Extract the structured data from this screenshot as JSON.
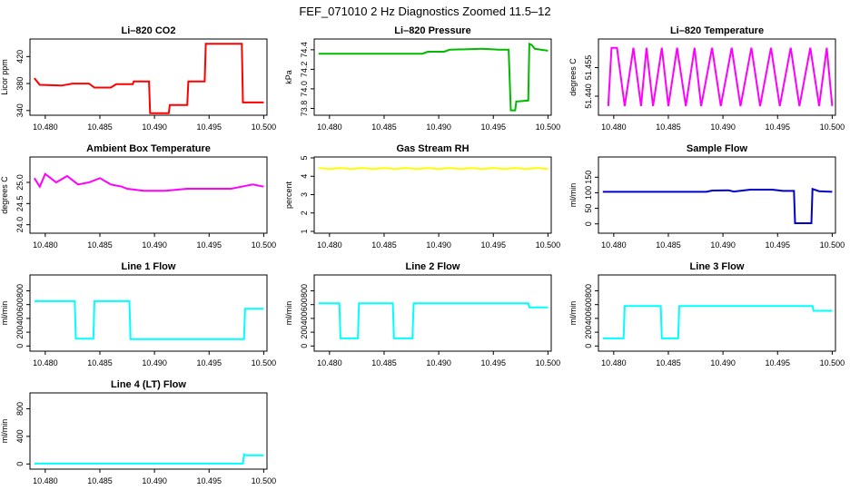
{
  "figure_title": "FEF_071010  2 Hz Diagnostics Zoomed 11.5–12",
  "chart_data": [
    {
      "type": "line",
      "title": "Li–820 CO2",
      "xlabel": "",
      "ylabel": "Licor ppm",
      "color": "#ff0000",
      "xlim": [
        10.4786,
        10.5003
      ],
      "ylim": [
        333,
        446
      ],
      "xticks": [
        "10.480",
        "10.485",
        "10.490",
        "10.495",
        "10.500"
      ],
      "yticks": [
        "340",
        "380",
        "420"
      ],
      "series": [
        {
          "points": [
            [
              10.479,
              388
            ],
            [
              10.4795,
              378
            ],
            [
              10.4815,
              377
            ],
            [
              10.4825,
              380
            ],
            [
              10.484,
              380
            ],
            [
              10.4845,
              374
            ],
            [
              10.486,
              374
            ],
            [
              10.4865,
              379
            ],
            [
              10.488,
              379
            ],
            [
              10.4881,
              383
            ],
            [
              10.4895,
              383
            ],
            [
              10.4896,
              336
            ],
            [
              10.4913,
              336
            ],
            [
              10.4914,
              348
            ],
            [
              10.493,
              348
            ],
            [
              10.4931,
              383
            ],
            [
              10.4946,
              383
            ],
            [
              10.4947,
              439
            ],
            [
              10.498,
              439
            ],
            [
              10.4981,
              352
            ],
            [
              10.5,
              352
            ]
          ]
        }
      ]
    },
    {
      "type": "line",
      "title": "Li–820 Pressure",
      "xlabel": "",
      "ylabel": "kPa",
      "color": "#00bb00",
      "xlim": [
        10.4786,
        10.5003
      ],
      "ylim": [
        73.73,
        74.51
      ],
      "xticks": [
        "10.480",
        "10.485",
        "10.490",
        "10.495",
        "10.500"
      ],
      "yticks": [
        "73.8",
        "74.0",
        "74.2",
        "74.4"
      ],
      "series": [
        {
          "points": [
            [
              10.479,
              74.36
            ],
            [
              10.4885,
              74.36
            ],
            [
              10.489,
              74.38
            ],
            [
              10.4905,
              74.38
            ],
            [
              10.491,
              74.4
            ],
            [
              10.494,
              74.41
            ],
            [
              10.4955,
              74.4
            ],
            [
              10.4964,
              74.4
            ],
            [
              10.4966,
              73.78
            ],
            [
              10.497,
              73.78
            ],
            [
              10.4971,
              73.87
            ],
            [
              10.4982,
              73.88
            ],
            [
              10.4983,
              74.46
            ],
            [
              10.4985,
              74.45
            ],
            [
              10.4988,
              74.41
            ],
            [
              10.5,
              74.39
            ]
          ]
        }
      ]
    },
    {
      "type": "line",
      "title": "Li–820 Temperature",
      "xlabel": "",
      "ylabel": "degrees C",
      "color": "#ff00ff",
      "xlim": [
        10.4786,
        10.5003
      ],
      "ylim": [
        51.43,
        51.47
      ],
      "xticks": [
        "10.480",
        "10.485",
        "10.490",
        "10.495",
        "10.500"
      ],
      "yticks": [
        "51.440",
        "51.455"
      ],
      "series": [
        {
          "points": [
            [
              10.4795,
              51.4348
            ],
            [
              10.4798,
              51.4654
            ],
            [
              10.4803,
              51.4654
            ],
            [
              10.481,
              51.4348
            ],
            [
              10.4818,
              51.4654
            ],
            [
              10.4825,
              51.4348
            ],
            [
              10.483,
              51.4654
            ],
            [
              10.4836,
              51.4348
            ],
            [
              10.4844,
              51.4654
            ],
            [
              10.485,
              51.4348
            ],
            [
              10.4858,
              51.4654
            ],
            [
              10.4866,
              51.4348
            ],
            [
              10.4874,
              51.4654
            ],
            [
              10.488,
              51.4348
            ],
            [
              10.489,
              51.4654
            ],
            [
              10.4898,
              51.4348
            ],
            [
              10.4908,
              51.4654
            ],
            [
              10.4916,
              51.4348
            ],
            [
              10.4926,
              51.4654
            ],
            [
              10.4934,
              51.4348
            ],
            [
              10.4944,
              51.4654
            ],
            [
              10.4952,
              51.4348
            ],
            [
              10.4962,
              51.4654
            ],
            [
              10.497,
              51.4348
            ],
            [
              10.498,
              51.4654
            ],
            [
              10.4988,
              51.4348
            ],
            [
              10.4995,
              51.4654
            ],
            [
              10.5,
              51.4348
            ]
          ]
        }
      ]
    },
    {
      "type": "line",
      "title": "Ambient Box Temperature",
      "xlabel": "",
      "ylabel": "degrees C",
      "color": "#ff00ff",
      "xlim": [
        10.4786,
        10.5003
      ],
      "ylim": [
        23.8,
        25.6
      ],
      "xticks": [
        "10.480",
        "10.485",
        "10.490",
        "10.495",
        "10.500"
      ],
      "yticks": [
        "24.0",
        "24.5",
        "25.0"
      ],
      "series": [
        {
          "points": [
            [
              10.479,
              25.1
            ],
            [
              10.4795,
              24.9
            ],
            [
              10.48,
              25.2
            ],
            [
              10.481,
              25.0
            ],
            [
              10.482,
              25.15
            ],
            [
              10.483,
              24.95
            ],
            [
              10.484,
              25.0
            ],
            [
              10.485,
              25.1
            ],
            [
              10.486,
              24.95
            ],
            [
              10.487,
              24.9
            ],
            [
              10.4875,
              24.85
            ],
            [
              10.489,
              24.8
            ],
            [
              10.491,
              24.8
            ],
            [
              10.493,
              24.85
            ],
            [
              10.495,
              24.85
            ],
            [
              10.497,
              24.85
            ],
            [
              10.498,
              24.9
            ],
            [
              10.499,
              24.95
            ],
            [
              10.5,
              24.9
            ]
          ]
        }
      ]
    },
    {
      "type": "line",
      "title": "Gas Stream RH",
      "xlabel": "",
      "ylabel": "percent",
      "color": "#ffff00",
      "xlim": [
        10.4786,
        10.5003
      ],
      "ylim": [
        0.9,
        5.05
      ],
      "xticks": [
        "10.480",
        "10.485",
        "10.490",
        "10.495",
        "10.500"
      ],
      "yticks": [
        "1",
        "2",
        "3",
        "4",
        "5"
      ],
      "series": [
        {
          "points": [
            [
              10.479,
              4.45
            ],
            [
              10.48,
              4.4
            ],
            [
              10.481,
              4.45
            ],
            [
              10.482,
              4.4
            ],
            [
              10.483,
              4.45
            ],
            [
              10.484,
              4.4
            ],
            [
              10.485,
              4.45
            ],
            [
              10.486,
              4.4
            ],
            [
              10.487,
              4.45
            ],
            [
              10.488,
              4.4
            ],
            [
              10.489,
              4.45
            ],
            [
              10.49,
              4.4
            ],
            [
              10.491,
              4.45
            ],
            [
              10.492,
              4.4
            ],
            [
              10.493,
              4.45
            ],
            [
              10.494,
              4.4
            ],
            [
              10.495,
              4.45
            ],
            [
              10.496,
              4.4
            ],
            [
              10.497,
              4.45
            ],
            [
              10.498,
              4.4
            ],
            [
              10.499,
              4.45
            ],
            [
              10.5,
              4.4
            ]
          ]
        }
      ]
    },
    {
      "type": "line",
      "title": "Sample Flow",
      "xlabel": "",
      "ylabel": "ml/min",
      "color": "#0000cc",
      "xlim": [
        10.4786,
        10.5003
      ],
      "ylim": [
        -30,
        215
      ],
      "xticks": [
        "10.480",
        "10.485",
        "10.490",
        "10.495",
        "10.500"
      ],
      "yticks": [
        "0",
        "50",
        "100",
        "150"
      ],
      "series": [
        {
          "points": [
            [
              10.479,
              103
            ],
            [
              10.4885,
              103
            ],
            [
              10.489,
              107
            ],
            [
              10.4905,
              108
            ],
            [
              10.491,
              104
            ],
            [
              10.4925,
              110
            ],
            [
              10.4945,
              110
            ],
            [
              10.4955,
              106
            ],
            [
              10.4965,
              106
            ],
            [
              10.4966,
              2
            ],
            [
              10.4981,
              2
            ],
            [
              10.4982,
              112
            ],
            [
              10.4988,
              105
            ],
            [
              10.5,
              103
            ]
          ]
        }
      ]
    },
    {
      "type": "line",
      "title": "Line 1 Flow",
      "xlabel": "",
      "ylabel": "ml/min",
      "color": "#00ffff",
      "xlim": [
        10.4786,
        10.5003
      ],
      "ylim": [
        -75,
        1030
      ],
      "xticks": [
        "10.480",
        "10.485",
        "10.490",
        "10.495",
        "10.500"
      ],
      "yticks": [
        "0",
        "200",
        "400",
        "600",
        "800"
      ],
      "series": [
        {
          "points": [
            [
              10.479,
              650
            ],
            [
              10.4827,
              650
            ],
            [
              10.4828,
              105
            ],
            [
              10.4844,
              105
            ],
            [
              10.4845,
              650
            ],
            [
              10.4877,
              650
            ],
            [
              10.4878,
              100
            ],
            [
              10.4982,
              100
            ],
            [
              10.4983,
              540
            ],
            [
              10.5,
              540
            ]
          ]
        }
      ]
    },
    {
      "type": "line",
      "title": "Line 2 Flow",
      "xlabel": "",
      "ylabel": "ml/min",
      "color": "#00ffff",
      "xlim": [
        10.4786,
        10.5003
      ],
      "ylim": [
        -75,
        1030
      ],
      "xticks": [
        "10.480",
        "10.485",
        "10.490",
        "10.495",
        "10.500"
      ],
      "yticks": [
        "0",
        "200",
        "400",
        "600",
        "800"
      ],
      "series": [
        {
          "points": [
            [
              10.479,
              620
            ],
            [
              10.4809,
              620
            ],
            [
              10.481,
              110
            ],
            [
              10.4826,
              110
            ],
            [
              10.4827,
              620
            ],
            [
              10.4858,
              620
            ],
            [
              10.4859,
              110
            ],
            [
              10.4876,
              110
            ],
            [
              10.4877,
              620
            ],
            [
              10.4982,
              620
            ],
            [
              10.4983,
              560
            ],
            [
              10.5,
              560
            ]
          ]
        }
      ]
    },
    {
      "type": "line",
      "title": "Line 3 Flow",
      "xlabel": "",
      "ylabel": "ml/min",
      "color": "#00ffff",
      "xlim": [
        10.4786,
        10.5003
      ],
      "ylim": [
        -75,
        1030
      ],
      "xticks": [
        "10.480",
        "10.485",
        "10.490",
        "10.495",
        "10.500"
      ],
      "yticks": [
        "0",
        "200",
        "400",
        "600",
        "800"
      ],
      "series": [
        {
          "points": [
            [
              10.479,
              110
            ],
            [
              10.4809,
              110
            ],
            [
              10.481,
              580
            ],
            [
              10.4843,
              580
            ],
            [
              10.4844,
              110
            ],
            [
              10.4859,
              110
            ],
            [
              10.486,
              580
            ],
            [
              10.4982,
              580
            ],
            [
              10.4983,
              510
            ],
            [
              10.5,
              510
            ]
          ]
        }
      ]
    },
    {
      "type": "line",
      "title": "Line 4 (LT) Flow",
      "xlabel": "",
      "ylabel": "ml/min",
      "color": "#00ffff",
      "xlim": [
        10.4786,
        10.5003
      ],
      "ylim": [
        -75,
        1030
      ],
      "xticks": [
        "10.480",
        "10.485",
        "10.490",
        "10.495",
        "10.500"
      ],
      "yticks": [
        "0",
        "400",
        "800"
      ],
      "series": [
        {
          "points": [
            [
              10.479,
              5
            ],
            [
              10.4981,
              5
            ],
            [
              10.4982,
              140
            ],
            [
              10.4984,
              125
            ],
            [
              10.5,
              125
            ]
          ]
        }
      ]
    }
  ]
}
